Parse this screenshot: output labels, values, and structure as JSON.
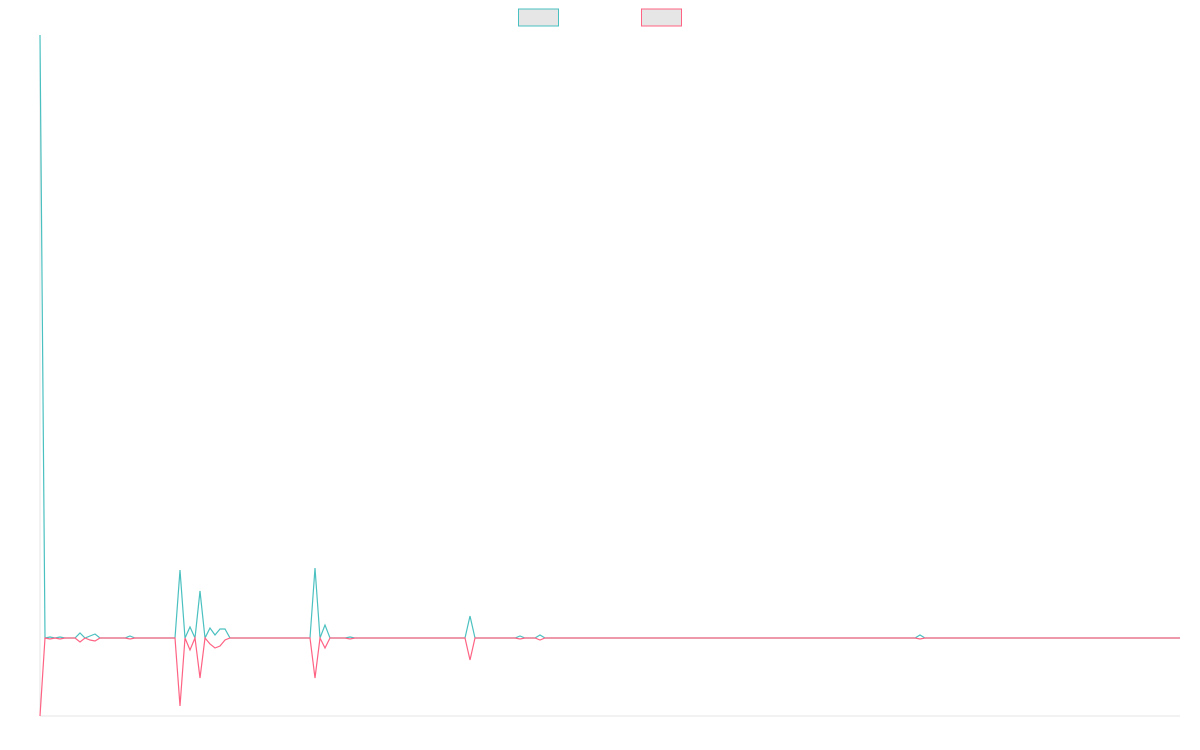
{
  "chart_data": {
    "type": "line",
    "x": [
      0,
      1,
      2,
      3,
      4,
      5,
      7,
      8,
      9,
      10,
      11,
      12,
      17,
      18,
      19,
      27,
      28,
      29,
      30,
      31,
      32,
      33,
      34,
      35,
      36,
      37,
      38,
      54,
      55,
      56,
      57,
      58,
      61,
      62,
      63,
      85,
      86,
      87,
      95,
      96,
      97,
      99,
      100,
      101,
      175,
      176,
      177,
      228
    ],
    "series": [
      {
        "color": "#4bc0c0",
        "values": [
          603,
          0,
          1,
          0,
          1,
          0,
          0,
          5,
          0,
          2,
          4,
          0,
          0,
          2,
          0,
          0,
          68,
          0,
          11,
          0,
          47,
          0,
          10,
          3,
          9,
          9,
          0,
          0,
          70,
          0,
          13,
          0,
          0,
          1,
          0,
          0,
          22,
          0,
          0,
          2,
          0,
          0,
          3,
          0,
          0,
          3,
          0,
          0
        ]
      },
      {
        "color": "#ff6384",
        "values": [
          -78,
          0,
          -1,
          0,
          -1,
          0,
          0,
          -4,
          0,
          -2,
          -3,
          0,
          0,
          -1,
          0,
          0,
          -68,
          0,
          -12,
          0,
          -40,
          0,
          -6,
          -10,
          -8,
          -2,
          0,
          0,
          -40,
          0,
          -10,
          0,
          0,
          -1,
          0,
          0,
          -22,
          0,
          0,
          -1,
          0,
          0,
          -2,
          0,
          0,
          -1,
          0,
          0
        ]
      }
    ],
    "xlim": [
      0,
      228
    ],
    "ylim": [
      -78,
      603
    ],
    "legend": "top"
  }
}
